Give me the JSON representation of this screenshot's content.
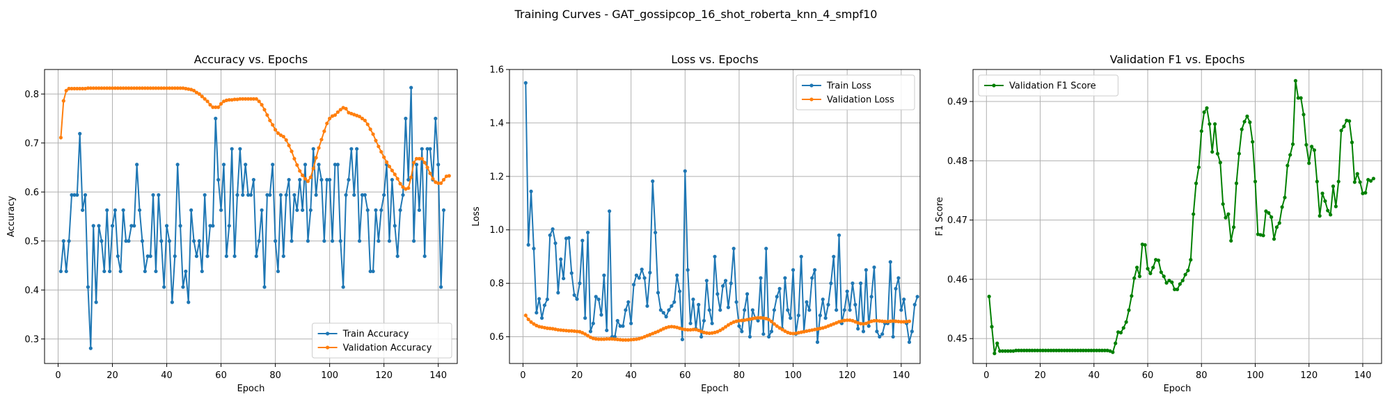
{
  "suptitle": "Training Curves - GAT_gossipcop_16_shot_roberta_knn_4_smpf10",
  "colors": {
    "train": "#1f77b4",
    "val": "#ff7f0e",
    "f1": "#008000",
    "grid": "#b0b0b0"
  },
  "chart_data": [
    {
      "type": "line",
      "title": "Accuracy vs. Epochs",
      "xlabel": "Epoch",
      "ylabel": "Accuracy",
      "xlim": [
        -5,
        147
      ],
      "ylim": [
        0.25,
        0.85
      ],
      "xticks": [
        0,
        20,
        40,
        60,
        80,
        100,
        120,
        140
      ],
      "yticks": [
        0.3,
        0.4,
        0.5,
        0.6,
        0.7,
        0.8
      ],
      "ytick_labels": [
        "0.3",
        "0.4",
        "0.5",
        "0.6",
        "0.7",
        "0.8"
      ],
      "grid": true,
      "legend_loc": "lower-right",
      "x_start": 1,
      "series": [
        {
          "name": "Train Accuracy",
          "color": "#1f77b4",
          "values": [
            0.438,
            0.5,
            0.438,
            0.5,
            0.594,
            0.594,
            0.594,
            0.719,
            0.563,
            0.594,
            0.406,
            0.281,
            0.531,
            0.375,
            0.531,
            0.5,
            0.438,
            0.563,
            0.438,
            0.531,
            0.563,
            0.469,
            0.438,
            0.563,
            0.5,
            0.5,
            0.531,
            0.531,
            0.656,
            0.563,
            0.5,
            0.438,
            0.469,
            0.469,
            0.594,
            0.438,
            0.594,
            0.5,
            0.406,
            0.531,
            0.5,
            0.375,
            0.469,
            0.656,
            0.531,
            0.406,
            0.438,
            0.375,
            0.563,
            0.5,
            0.469,
            0.5,
            0.438,
            0.594,
            0.469,
            0.531,
            0.531,
            0.75,
            0.625,
            0.563,
            0.656,
            0.469,
            0.531,
            0.688,
            0.469,
            0.594,
            0.688,
            0.594,
            0.656,
            0.594,
            0.594,
            0.625,
            0.469,
            0.5,
            0.563,
            0.406,
            0.594,
            0.594,
            0.656,
            0.5,
            0.438,
            0.594,
            0.469,
            0.594,
            0.625,
            0.5,
            0.594,
            0.563,
            0.625,
            0.563,
            0.656,
            0.5,
            0.563,
            0.688,
            0.594,
            0.656,
            0.625,
            0.5,
            0.625,
            0.625,
            0.5,
            0.656,
            0.656,
            0.5,
            0.406,
            0.594,
            0.625,
            0.688,
            0.594,
            0.688,
            0.5,
            0.594,
            0.594,
            0.563,
            0.438,
            0.438,
            0.563,
            0.5,
            0.563,
            0.594,
            0.656,
            0.5,
            0.625,
            0.531,
            0.469,
            0.563,
            0.594,
            0.75,
            0.625,
            0.813,
            0.5,
            0.656,
            0.563,
            0.688,
            0.469,
            0.688,
            0.688,
            0.625,
            0.75,
            0.656,
            0.406,
            0.563
          ]
        },
        {
          "name": "Validation Accuracy",
          "color": "#ff7f0e",
          "values": [
            0.711,
            0.786,
            0.807,
            0.811,
            0.811,
            0.811,
            0.811,
            0.811,
            0.811,
            0.811,
            0.812,
            0.812,
            0.812,
            0.812,
            0.812,
            0.812,
            0.812,
            0.812,
            0.812,
            0.812,
            0.812,
            0.812,
            0.812,
            0.812,
            0.812,
            0.812,
            0.812,
            0.812,
            0.812,
            0.812,
            0.812,
            0.812,
            0.812,
            0.812,
            0.812,
            0.812,
            0.812,
            0.812,
            0.812,
            0.812,
            0.812,
            0.812,
            0.812,
            0.812,
            0.812,
            0.812,
            0.811,
            0.81,
            0.809,
            0.807,
            0.803,
            0.8,
            0.795,
            0.79,
            0.785,
            0.778,
            0.773,
            0.773,
            0.773,
            0.78,
            0.785,
            0.787,
            0.788,
            0.788,
            0.789,
            0.789,
            0.79,
            0.79,
            0.79,
            0.79,
            0.79,
            0.79,
            0.79,
            0.785,
            0.778,
            0.768,
            0.757,
            0.746,
            0.737,
            0.727,
            0.72,
            0.716,
            0.713,
            0.706,
            0.695,
            0.683,
            0.668,
            0.655,
            0.643,
            0.634,
            0.627,
            0.622,
            0.63,
            0.648,
            0.67,
            0.69,
            0.707,
            0.724,
            0.74,
            0.75,
            0.755,
            0.757,
            0.763,
            0.768,
            0.772,
            0.77,
            0.762,
            0.76,
            0.758,
            0.756,
            0.754,
            0.75,
            0.746,
            0.738,
            0.728,
            0.718,
            0.705,
            0.693,
            0.682,
            0.671,
            0.661,
            0.652,
            0.644,
            0.636,
            0.627,
            0.617,
            0.61,
            0.606,
            0.608,
            0.63,
            0.66,
            0.668,
            0.668,
            0.668,
            0.66,
            0.65,
            0.638,
            0.627,
            0.62,
            0.618,
            0.618,
            0.625,
            0.632,
            0.633
          ]
        }
      ]
    },
    {
      "type": "line",
      "title": "Loss vs. Epochs",
      "xlabel": "Epoch",
      "ylabel": "Loss",
      "xlim": [
        -5,
        147
      ],
      "ylim": [
        0.5,
        1.6
      ],
      "xticks": [
        0,
        20,
        40,
        60,
        80,
        100,
        120,
        140
      ],
      "yticks": [
        0.6,
        0.8,
        1.0,
        1.2,
        1.4,
        1.6
      ],
      "ytick_labels": [
        "0.6",
        "0.8",
        "1.0",
        "1.2",
        "1.4",
        "1.6"
      ],
      "grid": true,
      "legend_loc": "upper-right",
      "x_start": 1,
      "series": [
        {
          "name": "Train Loss",
          "color": "#1f77b4",
          "values": [
            1.55,
            0.944,
            1.144,
            0.93,
            0.69,
            0.742,
            0.67,
            0.718,
            0.74,
            0.98,
            1.003,
            0.95,
            0.765,
            0.89,
            0.818,
            0.968,
            0.97,
            0.838,
            0.756,
            0.741,
            0.8,
            0.96,
            0.67,
            0.99,
            0.62,
            0.65,
            0.75,
            0.74,
            0.682,
            0.83,
            0.624,
            1.07,
            0.6,
            0.6,
            0.66,
            0.64,
            0.64,
            0.7,
            0.73,
            0.65,
            0.795,
            0.83,
            0.82,
            0.852,
            0.82,
            0.715,
            0.84,
            1.182,
            0.99,
            0.765,
            0.7,
            0.69,
            0.675,
            0.7,
            0.715,
            0.73,
            0.83,
            0.77,
            0.59,
            1.22,
            0.85,
            0.65,
            0.74,
            0.63,
            0.72,
            0.6,
            0.66,
            0.81,
            0.7,
            0.65,
            0.9,
            0.76,
            0.7,
            0.79,
            0.81,
            0.71,
            0.8,
            0.93,
            0.73,
            0.64,
            0.62,
            0.7,
            0.76,
            0.6,
            0.7,
            0.67,
            0.66,
            0.82,
            0.61,
            0.93,
            0.6,
            0.62,
            0.7,
            0.75,
            0.78,
            0.63,
            0.82,
            0.7,
            0.67,
            0.85,
            0.61,
            0.68,
            0.9,
            0.62,
            0.73,
            0.7,
            0.82,
            0.85,
            0.58,
            0.68,
            0.74,
            0.67,
            0.72,
            0.8,
            0.9,
            0.7,
            0.98,
            0.65,
            0.7,
            0.77,
            0.7,
            0.8,
            0.72,
            0.63,
            0.8,
            0.62,
            0.85,
            0.64,
            0.75,
            0.86,
            0.62,
            0.6,
            0.61,
            0.65,
            0.65,
            0.88,
            0.6,
            0.78,
            0.82,
            0.7,
            0.74,
            0.65,
            0.58,
            0.62,
            0.72,
            0.75
          ]
        },
        {
          "name": "Validation Loss",
          "color": "#ff7f0e",
          "values": [
            0.68,
            0.665,
            0.655,
            0.648,
            0.642,
            0.638,
            0.636,
            0.634,
            0.632,
            0.631,
            0.63,
            0.628,
            0.626,
            0.625,
            0.624,
            0.623,
            0.622,
            0.622,
            0.621,
            0.62,
            0.619,
            0.615,
            0.61,
            0.604,
            0.598,
            0.594,
            0.592,
            0.591,
            0.591,
            0.591,
            0.592,
            0.592,
            0.592,
            0.591,
            0.59,
            0.589,
            0.588,
            0.588,
            0.588,
            0.589,
            0.59,
            0.591,
            0.593,
            0.596,
            0.6,
            0.604,
            0.608,
            0.612,
            0.616,
            0.62,
            0.625,
            0.63,
            0.634,
            0.637,
            0.638,
            0.637,
            0.635,
            0.632,
            0.629,
            0.627,
            0.626,
            0.626,
            0.627,
            0.627,
            0.624,
            0.62,
            0.616,
            0.614,
            0.613,
            0.614,
            0.616,
            0.619,
            0.624,
            0.63,
            0.637,
            0.644,
            0.65,
            0.655,
            0.658,
            0.66,
            0.661,
            0.662,
            0.664,
            0.666,
            0.668,
            0.67,
            0.671,
            0.671,
            0.67,
            0.668,
            0.664,
            0.657,
            0.648,
            0.64,
            0.633,
            0.627,
            0.621,
            0.616,
            0.613,
            0.612,
            0.613,
            0.615,
            0.617,
            0.619,
            0.621,
            0.623,
            0.625,
            0.627,
            0.629,
            0.631,
            0.633,
            0.636,
            0.64,
            0.644,
            0.648,
            0.652,
            0.656,
            0.659,
            0.661,
            0.662,
            0.662,
            0.66,
            0.656,
            0.652,
            0.649,
            0.648,
            0.65,
            0.654,
            0.658,
            0.66,
            0.66,
            0.659,
            0.658,
            0.657,
            0.657,
            0.658,
            0.659,
            0.658,
            0.657,
            0.656,
            0.656,
            0.657,
            0.658
          ]
        }
      ]
    },
    {
      "type": "line",
      "title": "Validation F1 vs. Epochs",
      "xlabel": "Epoch",
      "ylabel": "F1 Score",
      "xlim": [
        -5,
        147
      ],
      "ylim": [
        0.4458,
        0.4954
      ],
      "xticks": [
        0,
        20,
        40,
        60,
        80,
        100,
        120,
        140
      ],
      "yticks": [
        0.45,
        0.46,
        0.47,
        0.48,
        0.49
      ],
      "ytick_labels": [
        "0.45",
        "0.46",
        "0.47",
        "0.48",
        "0.49"
      ],
      "grid": true,
      "legend_loc": "upper-left",
      "x_start": 1,
      "series": [
        {
          "name": "Validation F1 Score",
          "color": "#008000",
          "values": [
            0.4571,
            0.452,
            0.4475,
            0.4492,
            0.4479,
            0.4479,
            0.4479,
            0.4479,
            0.4479,
            0.4479,
            0.448,
            0.448,
            0.448,
            0.448,
            0.448,
            0.448,
            0.448,
            0.448,
            0.448,
            0.448,
            0.448,
            0.448,
            0.448,
            0.448,
            0.448,
            0.448,
            0.448,
            0.448,
            0.448,
            0.448,
            0.448,
            0.448,
            0.448,
            0.448,
            0.448,
            0.448,
            0.448,
            0.448,
            0.448,
            0.448,
            0.448,
            0.448,
            0.448,
            0.448,
            0.448,
            0.4479,
            0.4477,
            0.4492,
            0.4511,
            0.451,
            0.4518,
            0.4528,
            0.4548,
            0.4572,
            0.4602,
            0.462,
            0.4605,
            0.4659,
            0.4658,
            0.4618,
            0.461,
            0.462,
            0.4633,
            0.4632,
            0.4612,
            0.4605,
            0.4594,
            0.4598,
            0.4595,
            0.4583,
            0.4583,
            0.4592,
            0.4598,
            0.4608,
            0.4615,
            0.4633,
            0.471,
            0.4762,
            0.4789,
            0.485,
            0.4882,
            0.4889,
            0.4862,
            0.4815,
            0.4862,
            0.4812,
            0.4797,
            0.4727,
            0.4704,
            0.471,
            0.4665,
            0.4688,
            0.4762,
            0.4812,
            0.4853,
            0.4866,
            0.4875,
            0.4865,
            0.4832,
            0.4765,
            0.4676,
            0.4675,
            0.4674,
            0.4715,
            0.4712,
            0.4705,
            0.4668,
            0.4688,
            0.4695,
            0.4722,
            0.4738,
            0.4792,
            0.481,
            0.4828,
            0.4935,
            0.4906,
            0.4906,
            0.4878,
            0.4827,
            0.4796,
            0.4824,
            0.4818,
            0.4765,
            0.4707,
            0.4745,
            0.4732,
            0.4716,
            0.4709,
            0.4757,
            0.4723,
            0.4765,
            0.4851,
            0.4858,
            0.4868,
            0.4867,
            0.4831,
            0.4764,
            0.4778,
            0.4764,
            0.4745,
            0.4746,
            0.4768,
            0.4766,
            0.477
          ]
        }
      ]
    }
  ]
}
